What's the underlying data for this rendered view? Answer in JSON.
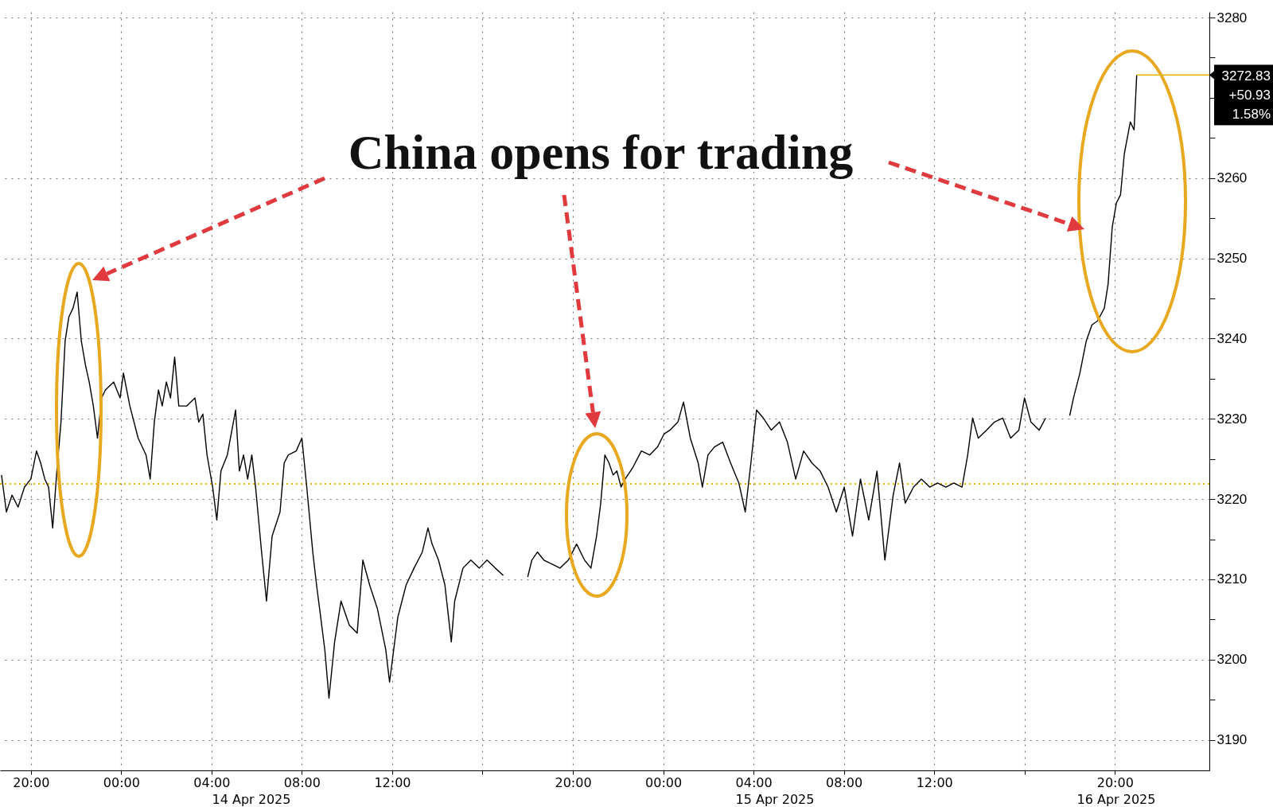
{
  "chart_data": {
    "type": "line",
    "annotations": [
      "China opens for trading",
      "14 Apr 2025",
      "15 Apr 2025",
      "16 Apr 2025",
      {
        "text": "3272.83",
        "x": "2025-04-15T20:58",
        "y": 3272.83
      },
      "+50.93",
      "1.58%"
    ],
    "x": [
      "2025-04-13T18:42",
      "2025-04-13T18:55",
      "2025-04-13T19:10",
      "2025-04-13T19:26",
      "2025-04-13T19:43",
      "2025-04-13T20:00",
      "2025-04-13T20:15",
      "2025-04-13T20:26",
      "2025-04-13T20:37",
      "2025-04-13T20:47",
      "2025-04-13T20:58",
      "2025-04-13T21:09",
      "2025-04-13T21:20",
      "2025-04-13T21:31",
      "2025-04-13T21:41",
      "2025-04-13T21:52",
      "2025-04-13T22:03",
      "2025-04-13T22:14",
      "2025-04-13T22:25",
      "2025-04-13T22:35",
      "2025-04-13T22:46",
      "2025-04-13T22:57",
      "2025-04-13T23:08",
      "2025-04-13T23:18",
      "2025-04-13T23:40",
      "2025-04-13T23:57",
      "2025-04-14T00:06",
      "2025-04-14T00:23",
      "2025-04-14T00:45",
      "2025-04-14T01:06",
      "2025-04-14T01:17",
      "2025-04-14T01:28",
      "2025-04-14T01:39",
      "2025-04-14T01:49",
      "2025-04-14T02:00",
      "2025-04-14T02:11",
      "2025-04-14T02:22",
      "2025-04-14T02:33",
      "2025-04-14T02:54",
      "2025-04-14T03:16",
      "2025-04-14T03:26",
      "2025-04-14T03:37",
      "2025-04-14T03:48",
      "2025-04-14T04:03",
      "2025-04-14T04:14",
      "2025-04-14T04:25",
      "2025-04-14T04:42",
      "2025-04-14T05:04",
      "2025-04-14T05:14",
      "2025-04-14T05:25",
      "2025-04-14T05:36",
      "2025-04-14T05:47",
      "2025-04-14T05:57",
      "2025-04-14T06:13",
      "2025-04-14T06:26",
      "2025-04-14T06:41",
      "2025-04-14T07:02",
      "2025-04-14T07:13",
      "2025-04-14T07:24",
      "2025-04-14T07:45",
      "2025-04-14T08:00",
      "2025-04-14T08:13",
      "2025-04-14T08:29",
      "2025-04-14T08:39",
      "2025-04-14T08:50",
      "2025-04-14T09:01",
      "2025-04-14T09:12",
      "2025-04-14T09:27",
      "2025-04-14T09:44",
      "2025-04-14T10:06",
      "2025-04-14T10:27",
      "2025-04-14T10:42",
      "2025-04-14T11:00",
      "2025-04-14T11:21",
      "2025-04-14T11:43",
      "2025-04-14T11:53",
      "2025-04-14T12:15",
      "2025-04-14T12:37",
      "2025-04-14T12:58",
      "2025-04-14T13:20",
      "2025-04-14T13:35",
      "2025-04-14T13:46",
      "2025-04-14T14:03",
      "2025-04-14T14:20",
      "2025-04-14T14:37",
      "2025-04-14T14:46",
      "2025-04-14T15:08",
      "2025-04-14T15:29",
      "2025-04-14T15:51",
      "2025-04-14T16:12",
      "2025-04-14T16:34",
      "2025-04-14T16:55",
      "2025-04-14T17:30",
      "2025-04-14T18:00",
      "2025-04-14T18:11",
      "2025-04-14T18:26",
      "2025-04-14T18:43",
      "2025-04-14T19:05",
      "2025-04-14T19:26",
      "2025-04-14T19:48",
      "2025-04-14T20:10",
      "2025-04-14T20:31",
      "2025-04-14T20:48",
      "2025-04-14T21:03",
      "2025-04-14T21:14",
      "2025-04-14T21:25",
      "2025-04-14T21:36",
      "2025-04-14T21:47",
      "2025-04-14T21:57",
      "2025-04-14T22:08",
      "2025-04-14T22:19",
      "2025-04-14T22:40",
      "2025-04-14T23:02",
      "2025-04-14T23:24",
      "2025-04-14T23:45",
      "2025-04-15T00:02",
      "2025-04-15T00:18",
      "2025-04-15T00:39",
      "2025-04-15T00:54",
      "2025-04-15T01:12",
      "2025-04-15T01:33",
      "2025-04-15T01:44",
      "2025-04-15T01:59",
      "2025-04-15T02:16",
      "2025-04-15T02:38",
      "2025-04-15T02:59",
      "2025-04-15T03:21",
      "2025-04-15T03:38",
      "2025-04-15T03:53",
      "2025-04-15T04:08",
      "2025-04-15T04:26",
      "2025-04-15T04:47",
      "2025-04-15T05:09",
      "2025-04-15T05:30",
      "2025-04-15T05:52",
      "2025-04-15T06:13",
      "2025-04-15T06:35",
      "2025-04-15T06:57",
      "2025-04-15T07:18",
      "2025-04-15T07:40",
      "2025-04-15T08:01",
      "2025-04-15T08:23",
      "2025-04-15T08:44",
      "2025-04-15T09:06",
      "2025-04-15T09:28",
      "2025-04-15T09:49",
      "2025-04-15T10:11",
      "2025-04-15T10:28",
      "2025-04-15T10:43",
      "2025-04-15T11:05",
      "2025-04-15T11:26",
      "2025-04-15T11:48",
      "2025-04-15T12:09",
      "2025-04-15T12:31",
      "2025-04-15T12:52",
      "2025-04-15T13:14",
      "2025-04-15T13:29",
      "2025-04-15T13:42",
      "2025-04-15T13:57",
      "2025-04-15T14:19",
      "2025-04-15T14:40",
      "2025-04-15T15:02",
      "2025-04-15T15:23",
      "2025-04-15T15:45",
      "2025-04-15T16:00",
      "2025-04-15T16:17",
      "2025-04-15T16:39",
      "2025-04-15T16:56",
      "2025-04-15T17:30",
      "2025-04-15T18:00",
      "2025-04-15T18:10",
      "2025-04-15T18:27",
      "2025-04-15T18:44",
      "2025-04-15T18:59",
      "2025-04-15T19:14",
      "2025-04-15T19:32",
      "2025-04-15T19:42",
      "2025-04-15T19:53",
      "2025-04-15T20:04",
      "2025-04-15T20:15",
      "2025-04-15T20:25",
      "2025-04-15T20:41",
      "2025-04-15T20:51",
      "2025-04-15T20:58"
    ],
    "series": [
      {
        "color": "#000000",
        "values": [
          3223.0,
          3218.4,
          3220.5,
          3219.0,
          3221.5,
          3222.5,
          3226.0,
          3224.5,
          3222.5,
          3221.5,
          3216.4,
          3223.5,
          3229.6,
          3239.7,
          3242.7,
          3243.8,
          3245.8,
          3239.7,
          3236.7,
          3234.6,
          3231.6,
          3227.6,
          3232.6,
          3233.6,
          3234.6,
          3232.6,
          3235.7,
          3231.6,
          3227.6,
          3225.5,
          3222.5,
          3229.6,
          3233.6,
          3231.6,
          3234.6,
          3232.6,
          3237.7,
          3231.6,
          3231.6,
          3232.6,
          3229.6,
          3230.6,
          3225.5,
          3221.5,
          3217.4,
          3223.5,
          3225.5,
          3231.1,
          3223.5,
          3225.5,
          3222.5,
          3225.5,
          3221.5,
          3213.4,
          3207.3,
          3215.4,
          3218.4,
          3224.5,
          3225.5,
          3226.0,
          3227.6,
          3221.5,
          3213.4,
          3209.3,
          3205.3,
          3201.2,
          3195.2,
          3202.2,
          3207.3,
          3204.3,
          3203.3,
          3212.4,
          3209.3,
          3206.3,
          3201.2,
          3197.2,
          3205.3,
          3209.3,
          3211.4,
          3213.4,
          3216.4,
          3214.4,
          3212.4,
          3209.3,
          3202.2,
          3207.3,
          3211.4,
          3212.4,
          3211.4,
          3212.4,
          3211.4,
          3210.5,
          null,
          3210.3,
          3212.4,
          3213.4,
          3212.4,
          3211.9,
          3211.4,
          3212.4,
          3214.4,
          3212.4,
          3211.4,
          3215.4,
          3219.5,
          3225.5,
          3224.5,
          3223.0,
          3223.5,
          3221.5,
          3222.5,
          3224.0,
          3226.0,
          3225.5,
          3226.5,
          3228.1,
          3228.6,
          3229.6,
          3232.1,
          3227.6,
          3224.5,
          3221.5,
          3225.5,
          3226.5,
          3227.1,
          3224.5,
          3222.0,
          3218.4,
          3224.5,
          3231.1,
          3230.1,
          3228.6,
          3229.6,
          3227.1,
          3222.5,
          3226.0,
          3224.5,
          3223.5,
          3221.5,
          3218.4,
          3221.5,
          3215.4,
          3222.5,
          3217.4,
          3223.5,
          3212.4,
          3220.5,
          3224.5,
          3219.5,
          3221.5,
          3222.5,
          3221.5,
          3222.0,
          3221.5,
          3222.0,
          3221.5,
          3225.5,
          3230.1,
          3227.6,
          3228.6,
          3229.6,
          3230.1,
          3227.6,
          3228.6,
          3232.6,
          3229.6,
          3228.6,
          3230.1,
          null,
          3230.4,
          3232.6,
          3235.7,
          3239.7,
          3241.7,
          3242.2,
          3243.8,
          3246.8,
          3253.9,
          3256.9,
          3257.9,
          3263.0,
          3267.0,
          3266.0,
          3272.83
        ]
      }
    ],
    "xlim": [
      "2025-04-13T18:38",
      "2025-04-16T00:11"
    ],
    "xticks": [
      {
        "value": "2025-04-13T20:00",
        "label": "20:00"
      },
      {
        "value": "2025-04-14T00:00",
        "label": "00:00"
      },
      {
        "value": "2025-04-14T04:00",
        "label": "04:00"
      },
      {
        "value": "2025-04-14T08:00",
        "label": "08:00"
      },
      {
        "value": "2025-04-14T12:00",
        "label": "12:00"
      },
      {
        "value": "2025-04-14T16:00",
        "label": null
      },
      {
        "value": "2025-04-14T20:00",
        "label": "20:00"
      },
      {
        "value": "2025-04-15T00:00",
        "label": "00:00"
      },
      {
        "value": "2025-04-15T04:00",
        "label": "04:00"
      },
      {
        "value": "2025-04-15T08:00",
        "label": "08:00"
      },
      {
        "value": "2025-04-15T12:00",
        "label": "12:00"
      },
      {
        "value": "2025-04-15T16:00",
        "label": null
      },
      {
        "value": "2025-04-15T20:00",
        "label": "20:00"
      }
    ],
    "ylim": [
      3186.2,
      3280.7
    ],
    "yticks": [
      3190,
      {
        "value": 3195,
        "label": null
      },
      3200,
      {
        "value": 3205,
        "label": null
      },
      3210,
      {
        "value": 3215,
        "label": null
      },
      3220,
      {
        "value": 3225,
        "label": null
      },
      3230,
      {
        "value": 3235,
        "label": null
      },
      3240,
      {
        "value": 3245,
        "label": null
      },
      3250,
      {
        "value": 3255,
        "label": null
      },
      3260,
      {
        "value": 3265,
        "label": null
      },
      {
        "value": 3270,
        "label": null
      },
      {
        "value": 3275,
        "label": null
      },
      3280
    ],
    "ref_lines": [
      {
        "axis": "y",
        "value": 3221.9,
        "color": "#e2b800",
        "line_style": "dotted"
      }
    ],
    "grid": true
  }
}
